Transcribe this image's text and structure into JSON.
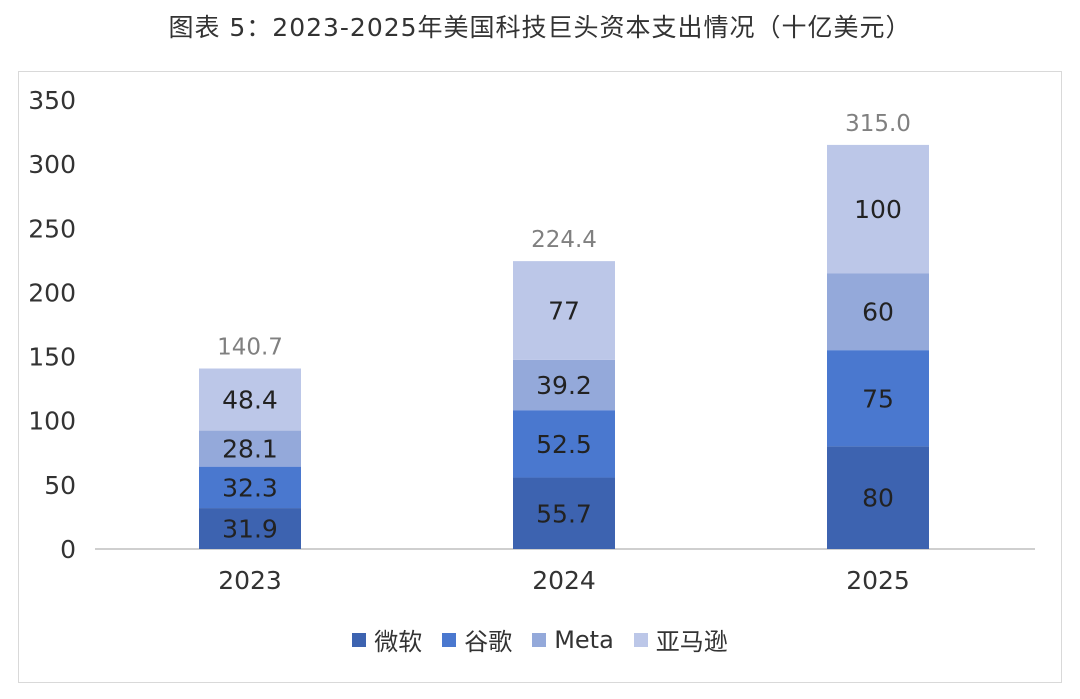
{
  "title": "图表 5：2023-2025年美国科技巨头资本支出情况（十亿美元）",
  "chart_data": {
    "type": "bar",
    "stacked": true,
    "title": "图表 5：2023-2025年美国科技巨头资本支出情况（十亿美元）",
    "categories": [
      "2023",
      "2024",
      "2025"
    ],
    "series": [
      {
        "name": "微软",
        "values": [
          31.9,
          55.7,
          80
        ],
        "color": "#3d63b0"
      },
      {
        "name": "谷歌",
        "values": [
          32.3,
          52.5,
          75
        ],
        "color": "#4a78cf"
      },
      {
        "name": "Meta",
        "values": [
          28.1,
          39.2,
          60
        ],
        "color": "#94a9da"
      },
      {
        "name": "亚马逊",
        "values": [
          48.4,
          77,
          100
        ],
        "color": "#bcc7e8"
      }
    ],
    "totals": [
      "140.7",
      "224.4",
      "315.0"
    ],
    "yticks": [
      0,
      50,
      100,
      150,
      200,
      250,
      300,
      350
    ],
    "ylim": [
      0,
      350
    ],
    "xlabel": "",
    "ylabel": "",
    "legend_position": "bottom",
    "grid": false
  }
}
